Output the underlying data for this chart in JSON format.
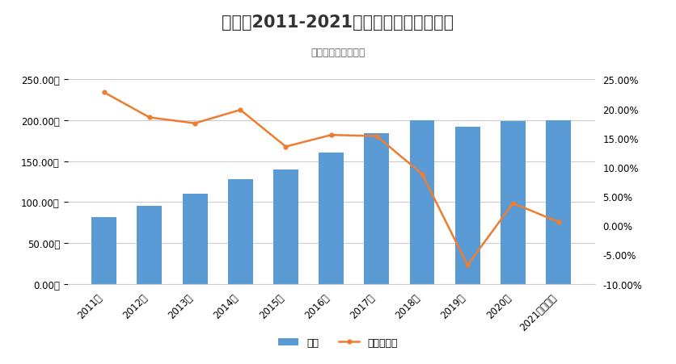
{
  "title": "修美乐2011-2021销售收入及同比增长率",
  "subtitle": "数据来源：药智数据",
  "categories": [
    "2011年",
    "2012年",
    "2013年",
    "2014年",
    "2015年",
    "2016年",
    "2017年",
    "2018年",
    "2019年",
    "2020年",
    "2021年（预）"
  ],
  "bar_values": [
    82,
    95,
    110,
    128,
    140,
    161,
    184,
    200,
    192,
    199,
    200
  ],
  "line_values": [
    0.228,
    0.185,
    0.175,
    0.198,
    0.135,
    0.155,
    0.153,
    0.088,
    -0.068,
    0.038,
    0.006
  ],
  "bar_color": "#5B9BD5",
  "line_color": "#ED7D31",
  "ylim_left": [
    0,
    250
  ],
  "ylim_right": [
    -0.1,
    0.25
  ],
  "yticks_left": [
    0,
    50,
    100,
    150,
    200,
    250
  ],
  "yticks_right": [
    -0.1,
    -0.05,
    0.0,
    0.05,
    0.1,
    0.15,
    0.2,
    0.25
  ],
  "ylabel_left_labels": [
    "0.00亿",
    "50.00亿",
    "100.00亿",
    "150.00亿",
    "200.00亿",
    "250.00亿"
  ],
  "ylabel_right_labels": [
    "-10.00%",
    "-5.00%",
    "0.00%",
    "5.00%",
    "10.00%",
    "15.00%",
    "20.00%",
    "25.00%"
  ],
  "legend_bar": "收入",
  "legend_line": "同比增长率",
  "bg_color": "#FFFFFF",
  "grid_color": "#CCCCCC",
  "title_fontsize": 15,
  "subtitle_fontsize": 9,
  "tick_fontsize": 8.5,
  "legend_fontsize": 9
}
